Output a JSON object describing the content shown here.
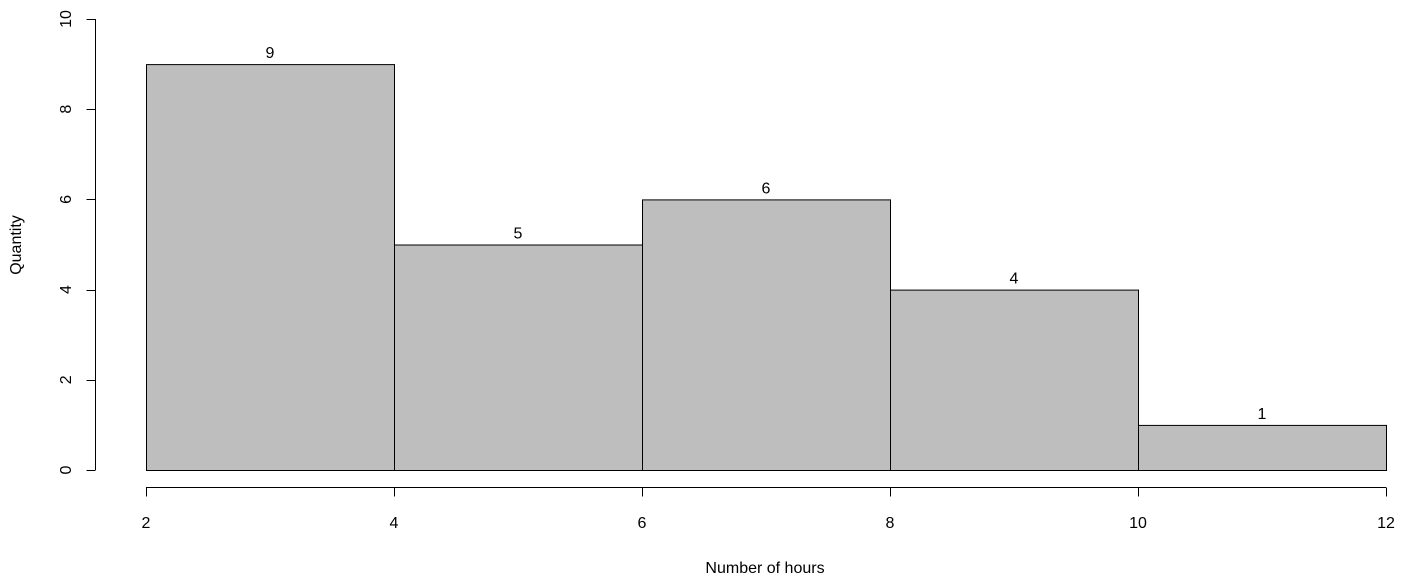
{
  "chart_data": {
    "type": "bar",
    "subtype": "histogram",
    "bins": [
      {
        "start": 2,
        "end": 4,
        "value": 9
      },
      {
        "start": 4,
        "end": 6,
        "value": 5
      },
      {
        "start": 6,
        "end": 8,
        "value": 6
      },
      {
        "start": 8,
        "end": 10,
        "value": 4
      },
      {
        "start": 10,
        "end": 12,
        "value": 1
      }
    ],
    "data_labels": [
      "9",
      "5",
      "6",
      "4",
      "1"
    ],
    "xlabel": "Number of hours",
    "ylabel": "Quantity",
    "xlim": [
      2,
      12
    ],
    "ylim": [
      0,
      10
    ],
    "x_ticks": [
      2,
      4,
      6,
      8,
      10,
      12
    ],
    "y_ticks": [
      0,
      2,
      4,
      6,
      8,
      10
    ],
    "grid": false,
    "legend": "none",
    "colors": {
      "bar_fill": "#bebebe",
      "bar_stroke": "#000000",
      "axis": "#000000"
    }
  }
}
